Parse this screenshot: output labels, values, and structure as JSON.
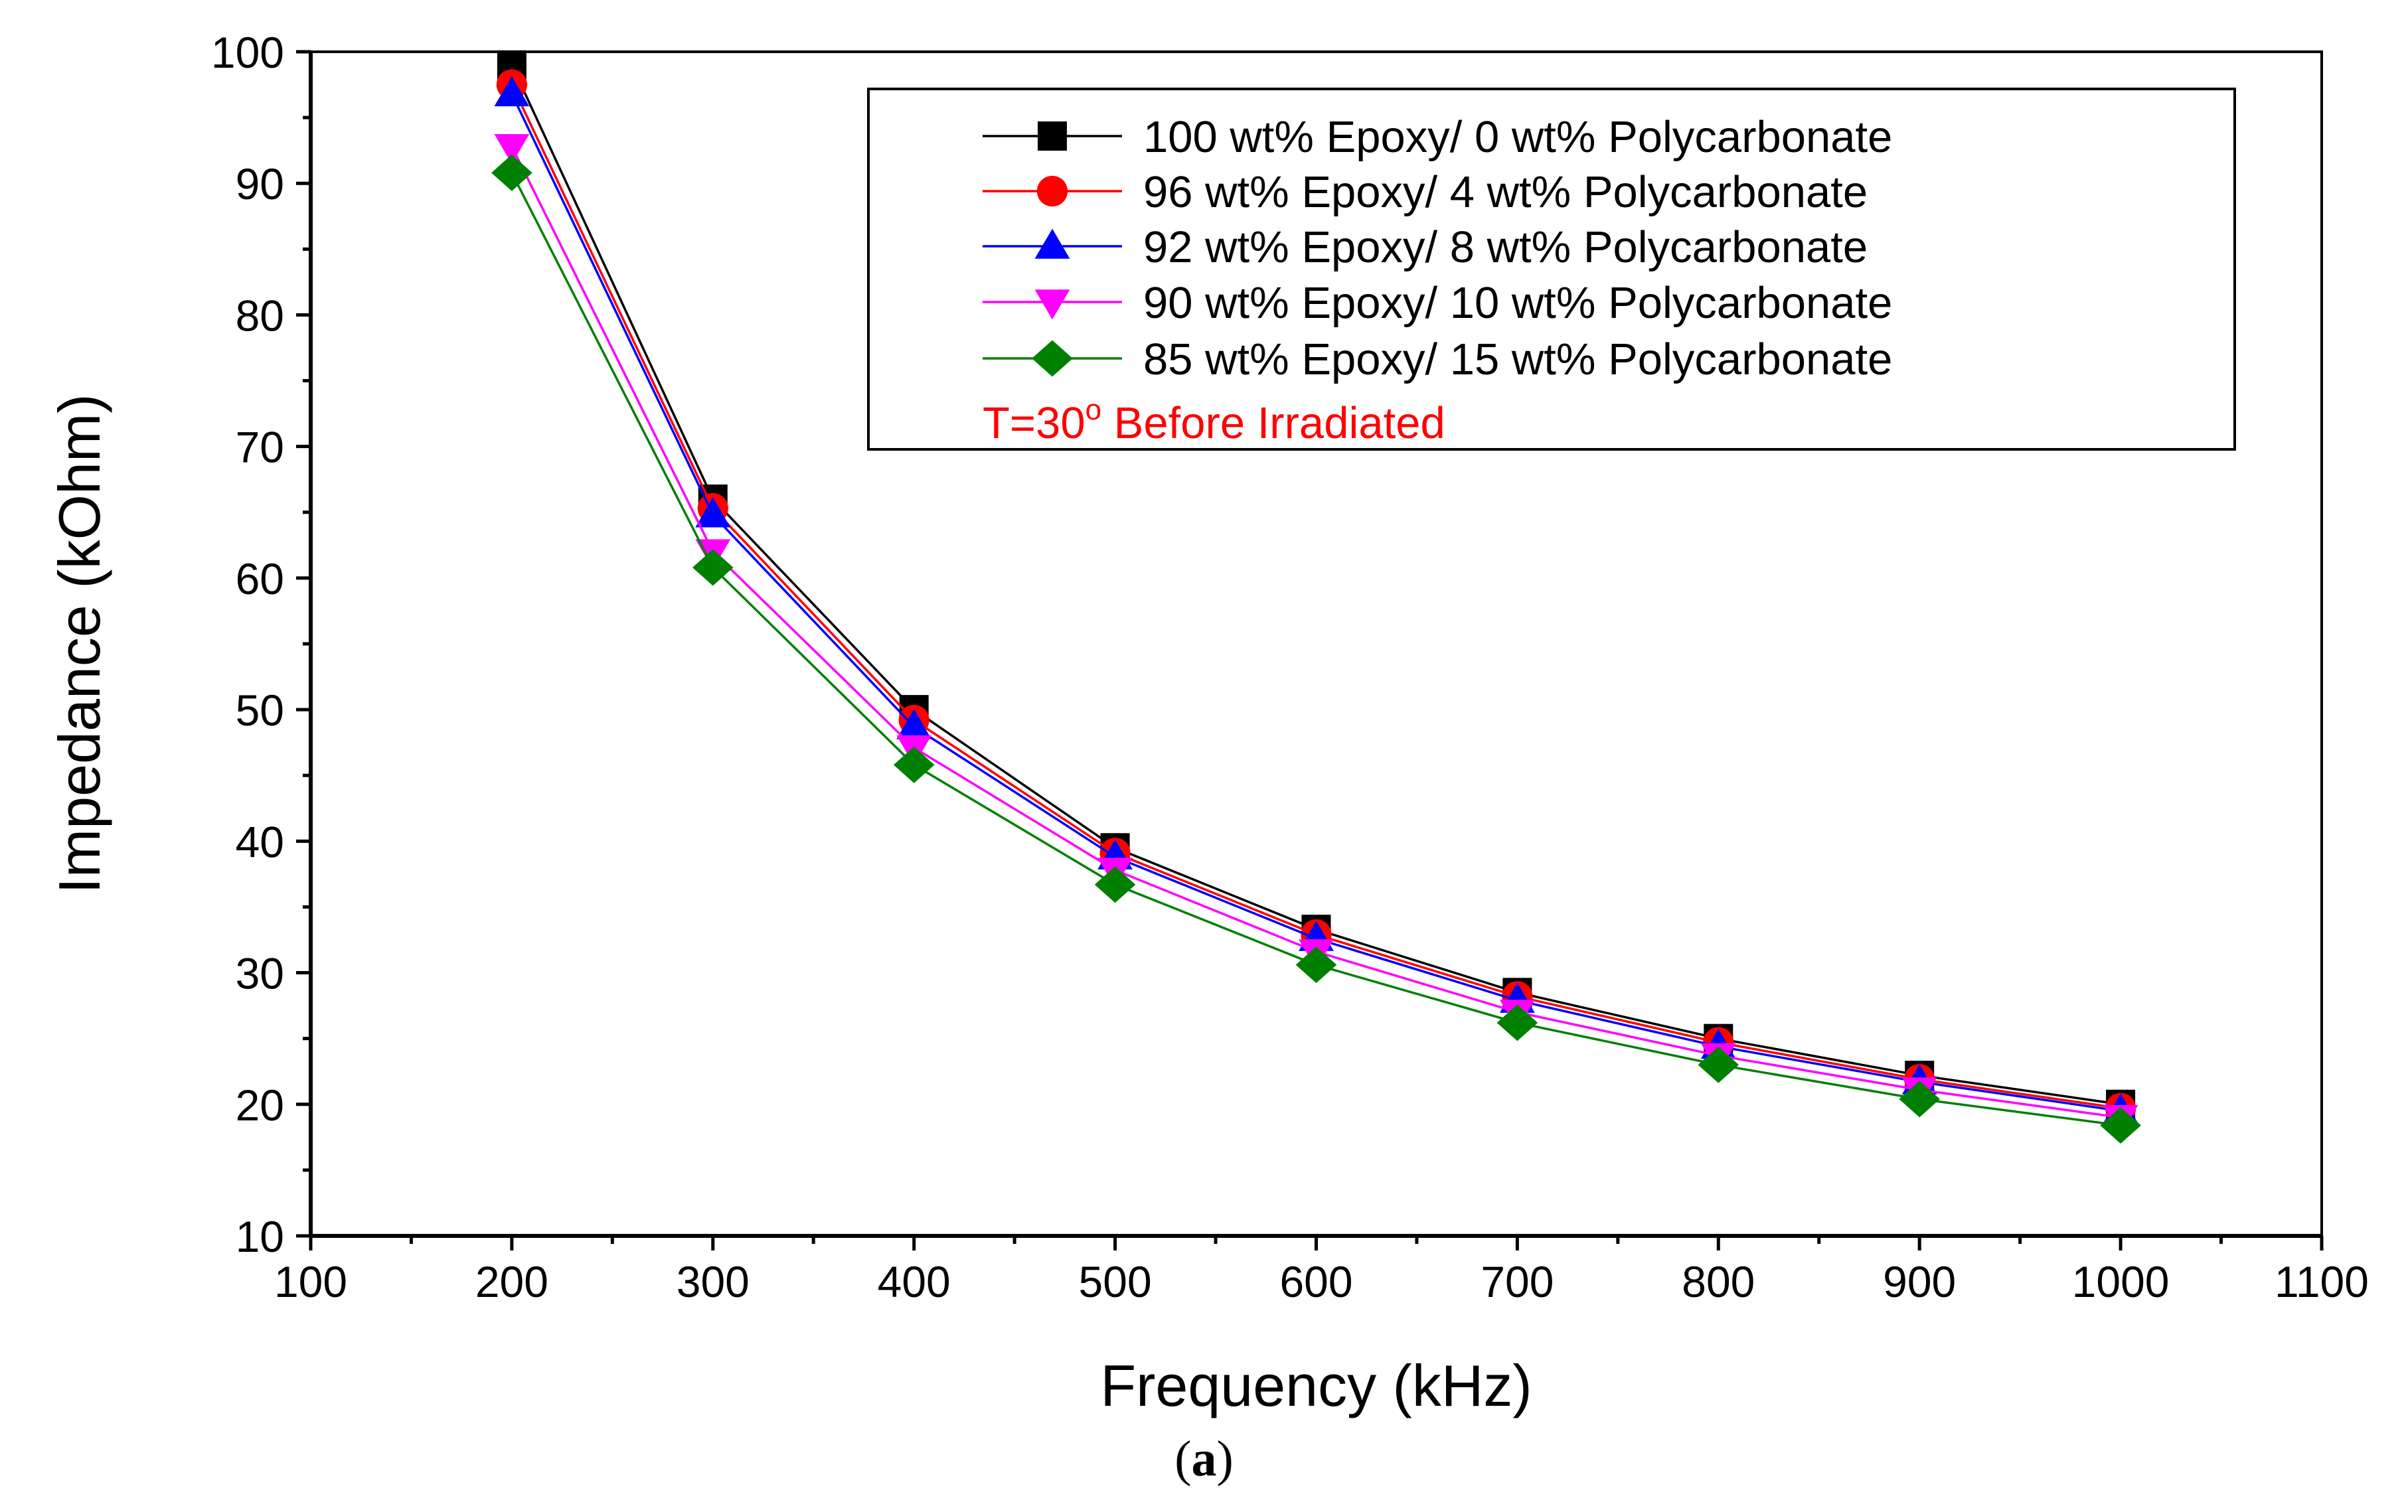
{
  "chart_data": {
    "type": "line",
    "title": "",
    "xlabel": "Frequency (kHz)",
    "ylabel": "Impedance (kOhm)",
    "xlim": [
      100,
      1100
    ],
    "ylim": [
      10,
      100
    ],
    "xticks": [
      100,
      200,
      300,
      400,
      500,
      600,
      700,
      800,
      900,
      1000,
      1100
    ],
    "yticks": [
      10,
      20,
      30,
      40,
      50,
      60,
      70,
      80,
      90,
      100
    ],
    "grid": false,
    "legend_position": "top-right",
    "annotation": {
      "prefix": "T=30",
      "superscript": "o",
      "suffix": " Before Irradiated",
      "color": "#ff0000"
    },
    "x": [
      200,
      300,
      400,
      500,
      600,
      700,
      800,
      900,
      1000
    ],
    "series": [
      {
        "name": "100 wt% Epoxy/ 0 wt% Polycarbonate",
        "color": "#000000",
        "marker": "square",
        "values": [
          99.0,
          66.0,
          50.0,
          39.5,
          33.3,
          28.5,
          25.0,
          22.2,
          20.0
        ]
      },
      {
        "name": "96 wt% Epoxy/ 4 wt% Polycarbonate",
        "color": "#ff0000",
        "marker": "circle",
        "values": [
          97.5,
          65.3,
          49.2,
          39.1,
          32.9,
          28.2,
          24.7,
          21.9,
          19.7
        ]
      },
      {
        "name": "92 wt% Epoxy/ 8 wt% Polycarbonate",
        "color": "#0000ff",
        "marker": "triangle-up",
        "values": [
          96.8,
          64.8,
          48.7,
          38.8,
          32.6,
          27.9,
          24.4,
          21.7,
          19.5
        ]
      },
      {
        "name": "90 wt% Epoxy/ 10 wt% Polycarbonate",
        "color": "#ff00ff",
        "marker": "triangle-down",
        "values": [
          92.8,
          62.0,
          47.1,
          37.8,
          31.6,
          27.0,
          23.7,
          21.1,
          19.0
        ]
      },
      {
        "name": "85 wt% Epoxy/ 15 wt% Polycarbonate",
        "color": "#008000",
        "marker": "diamond",
        "values": [
          90.8,
          60.8,
          45.8,
          36.7,
          30.6,
          26.2,
          23.0,
          20.4,
          18.4
        ]
      }
    ]
  },
  "caption": {
    "open": "(",
    "letter": "a",
    "close": ")"
  }
}
